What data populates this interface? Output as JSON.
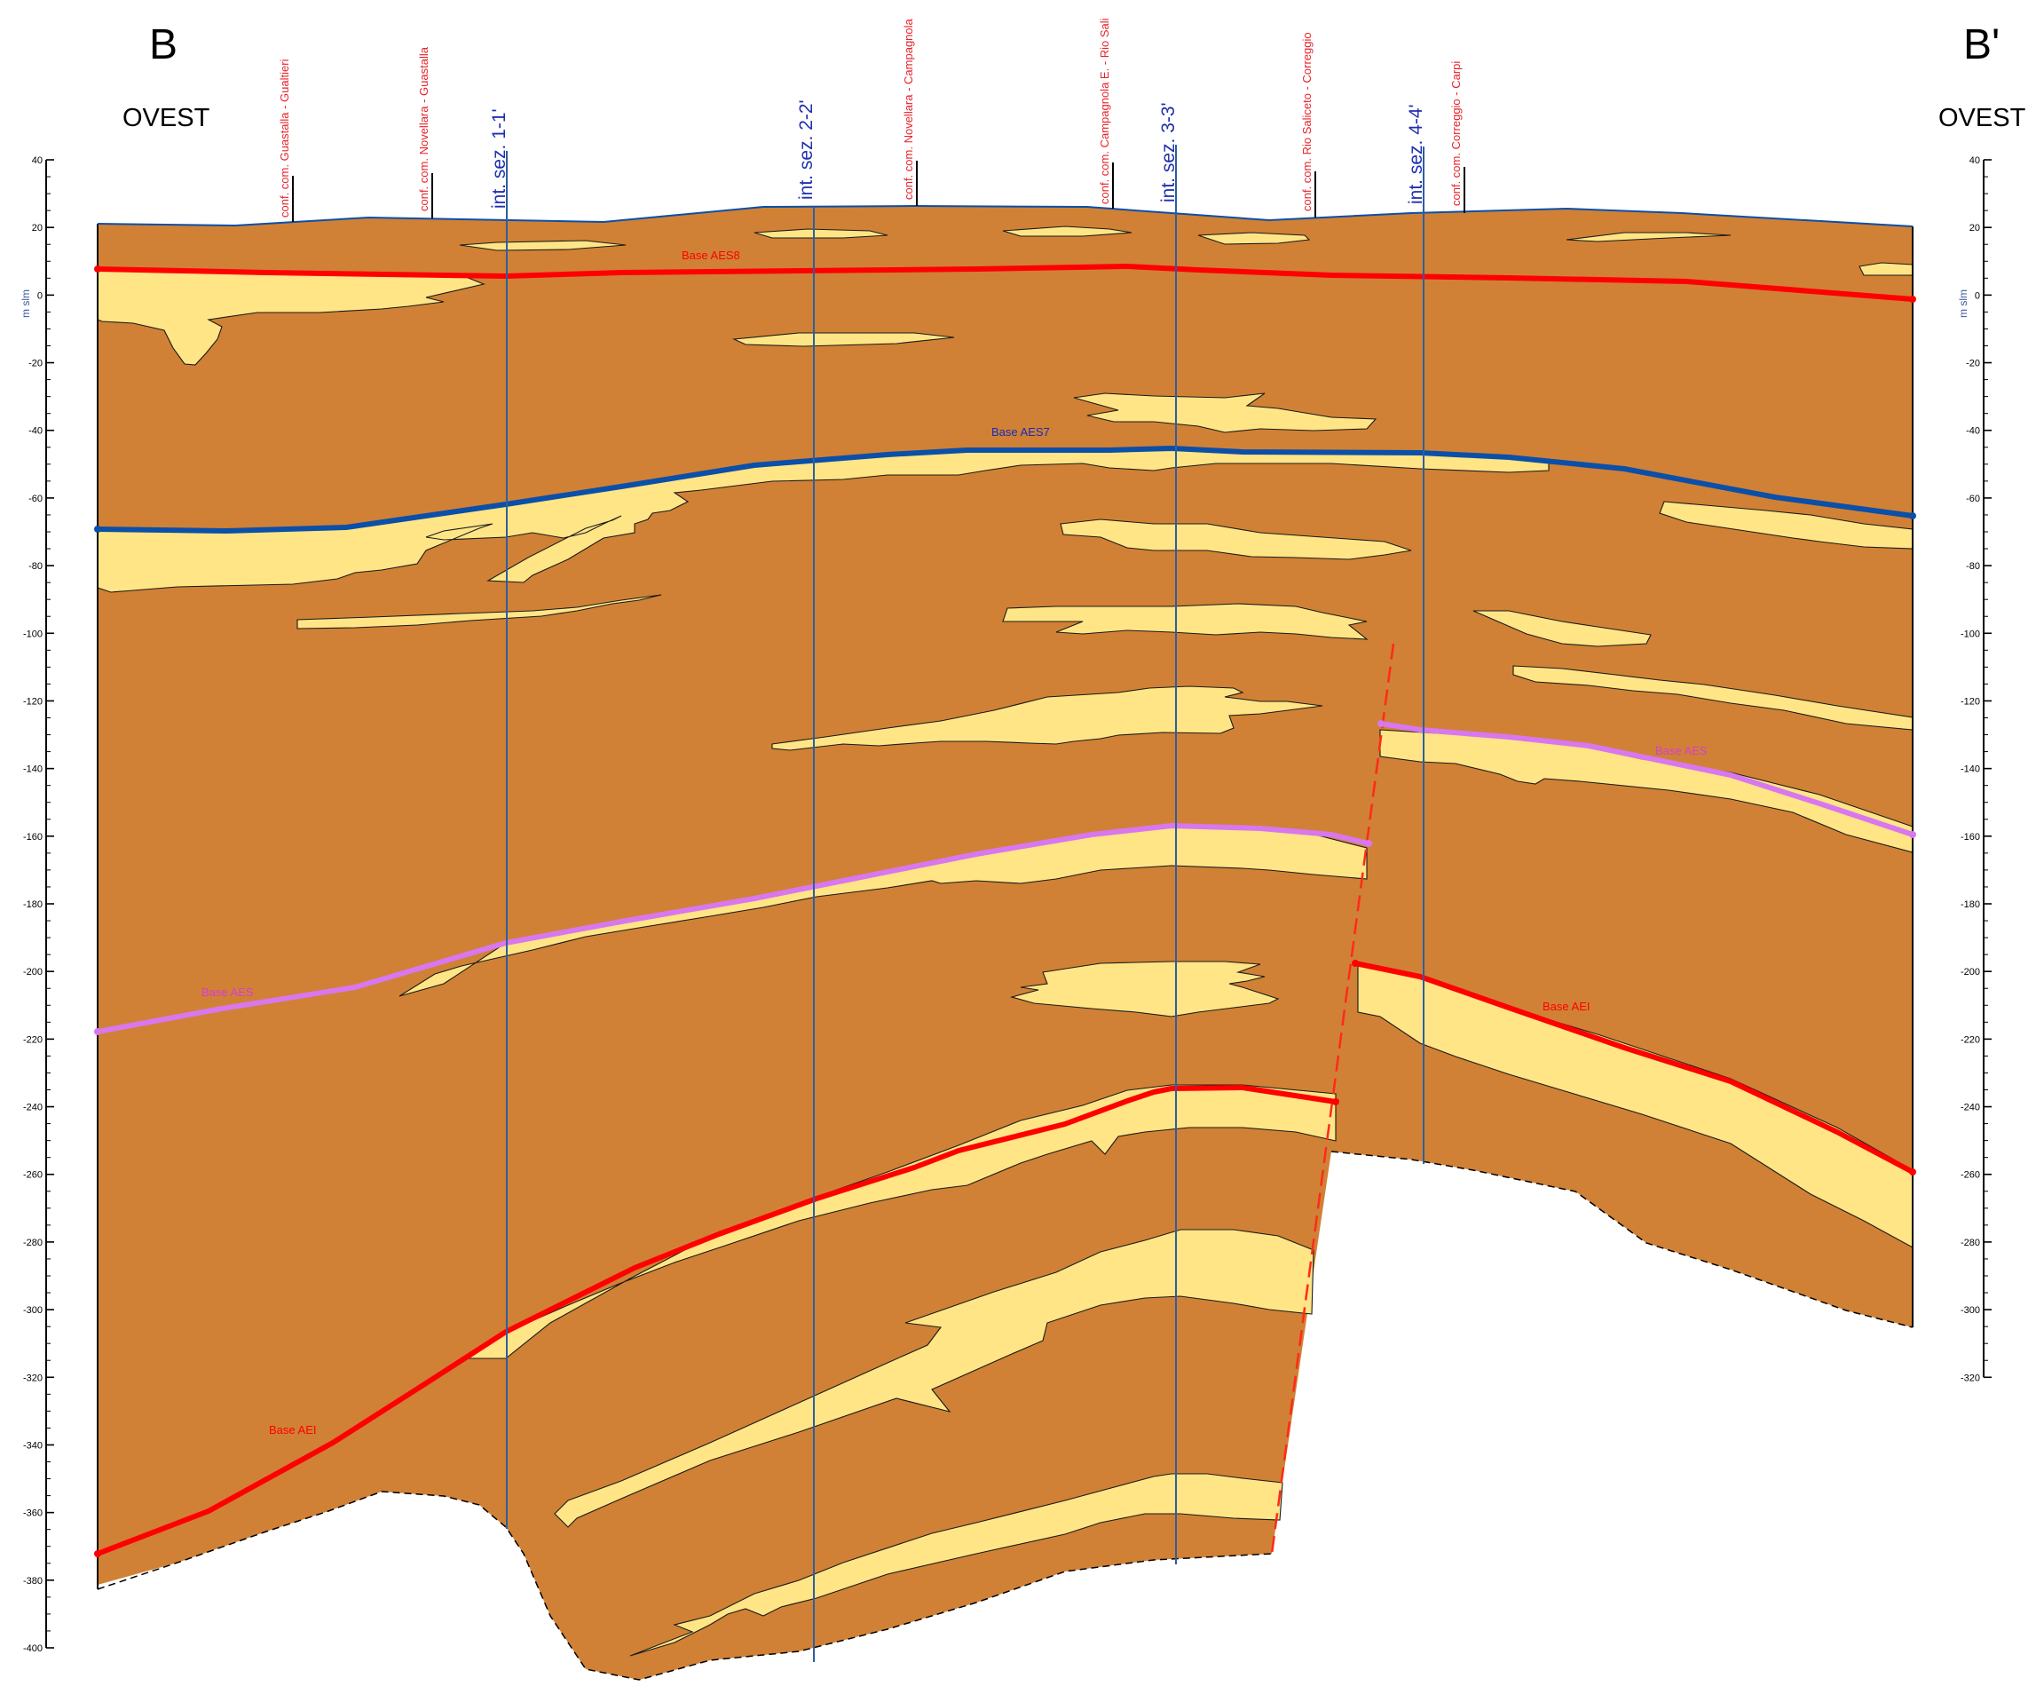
{
  "header": {
    "left_letter": "B",
    "right_letter": "B'",
    "left_direction": "OVEST",
    "right_direction": "OVEST"
  },
  "axis": {
    "unit": "m slm",
    "min": -400,
    "max": 40,
    "major_step": 20,
    "tick_labels": [
      "40",
      "20",
      "0",
      "-20",
      "-40",
      "-60",
      "-80",
      "-100",
      "-120",
      "-140",
      "-160",
      "-180",
      "-200",
      "-220",
      "-240",
      "-260",
      "-280",
      "-300",
      "-320",
      "-340",
      "-360",
      "-380",
      "-400"
    ],
    "right_tick_labels": [
      "40",
      "20",
      "0",
      "-20",
      "-40",
      "-60",
      "-80",
      "-100",
      "-120",
      "-140",
      "-160",
      "-180",
      "-200",
      "-220",
      "-240",
      "-260",
      "-280",
      "-300",
      "-320"
    ]
  },
  "locations": [
    {
      "label": "conf. com. Guastalla - Gualtieri"
    },
    {
      "label": "conf. com. Novellara - Guastalla"
    },
    {
      "label": "conf. com. Novellara - Campagnola"
    },
    {
      "label": "conf. com. Campagnola E. - Rio Sali"
    },
    {
      "label": "conf. com. Rio Saliceto - Correggio"
    },
    {
      "label": "conf. com. Correggio - Carpi"
    }
  ],
  "section_intersections": [
    {
      "label": "int. sez. 1-1'"
    },
    {
      "label": "int. sez. 2-2'"
    },
    {
      "label": "int. sez. 3-3'"
    },
    {
      "label": "int. sez. 4-4'"
    }
  ],
  "horizons": {
    "aes8": {
      "label": "Base AES8",
      "color": "#ff0000"
    },
    "aes7": {
      "label": "Base AES7",
      "color": "#0b4fa8"
    },
    "aes_left": {
      "label": "Base AES",
      "color": "#d877ee"
    },
    "aes_right": {
      "label": "Base AES",
      "color": "#d877ee"
    },
    "aei_left": {
      "label": "Base AEI",
      "color": "#ff0000"
    },
    "aei_right": {
      "label": "Base AEI",
      "color": "#ff0000"
    }
  },
  "colors": {
    "clay": "#d08135",
    "sand": "#ffe586",
    "aes8": "#ff0000",
    "aes7": "#0b4fa8",
    "aes": "#d877ee",
    "aei": "#ff0000",
    "section_line": "#2e5e9e",
    "fault": "#ff2a1a"
  }
}
